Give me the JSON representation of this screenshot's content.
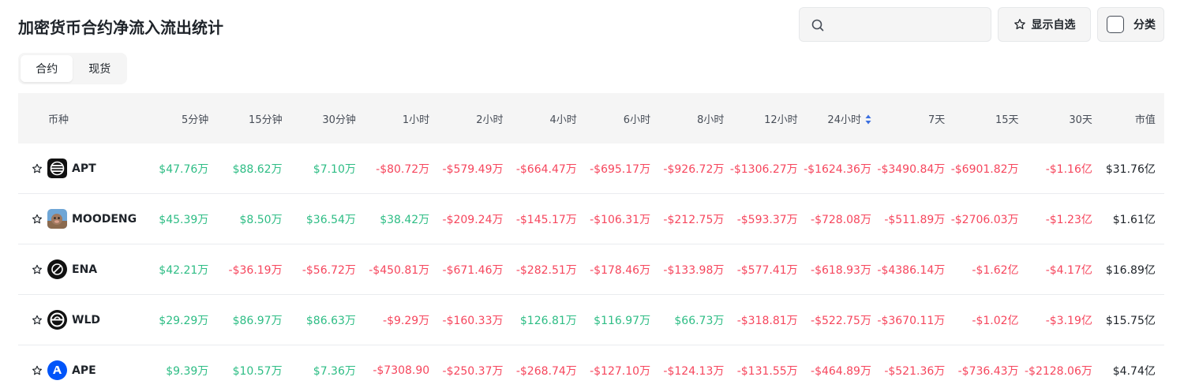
{
  "title": "加密货币合约净流入流出统计",
  "search": {
    "placeholder": "",
    "value": ""
  },
  "toolbar": {
    "favorites_label": "显示自选",
    "category_label": "分类"
  },
  "tabs": [
    {
      "label": "合约",
      "active": true
    },
    {
      "label": "现货",
      "active": false
    }
  ],
  "columns": [
    "币种",
    "5分钟",
    "15分钟",
    "30分钟",
    "1小时",
    "2小时",
    "4小时",
    "6小时",
    "8小时",
    "12小时",
    "24小时",
    "7天",
    "15天",
    "30天",
    "市值"
  ],
  "sorted_column": "24小时",
  "colors": {
    "positive": "#2ebd85",
    "negative": "#f6465d",
    "text": "#1e2329",
    "header_bg": "#f5f5f5"
  },
  "rows": [
    {
      "symbol": "APT",
      "icon": "apt-logo-icon",
      "values": [
        "$47.76万",
        "$88.62万",
        "$7.10万",
        "-$80.72万",
        "-$579.49万",
        "-$664.47万",
        "-$695.17万",
        "-$926.72万",
        "-$1306.27万",
        "-$1624.36万",
        "-$3490.84万",
        "-$6901.82万",
        "-$1.16亿"
      ],
      "market_cap": "$31.76亿"
    },
    {
      "symbol": "MOODENG",
      "icon": "moodeng-logo-icon",
      "values": [
        "$45.39万",
        "$8.50万",
        "$36.54万",
        "$38.42万",
        "-$209.24万",
        "-$145.17万",
        "-$106.31万",
        "-$212.75万",
        "-$593.37万",
        "-$728.08万",
        "-$511.89万",
        "-$2706.03万",
        "-$1.23亿"
      ],
      "market_cap": "$1.61亿"
    },
    {
      "symbol": "ENA",
      "icon": "ena-logo-icon",
      "values": [
        "$42.21万",
        "-$36.19万",
        "-$56.72万",
        "-$450.81万",
        "-$671.46万",
        "-$282.51万",
        "-$178.46万",
        "-$133.98万",
        "-$577.41万",
        "-$618.93万",
        "-$4386.14万",
        "-$1.62亿",
        "-$4.17亿"
      ],
      "market_cap": "$16.89亿"
    },
    {
      "symbol": "WLD",
      "icon": "wld-logo-icon",
      "values": [
        "$29.29万",
        "$86.97万",
        "$86.63万",
        "-$9.29万",
        "-$160.33万",
        "$126.81万",
        "$116.97万",
        "$66.73万",
        "-$318.81万",
        "-$522.75万",
        "-$3670.11万",
        "-$1.02亿",
        "-$3.19亿"
      ],
      "market_cap": "$15.75亿"
    },
    {
      "symbol": "APE",
      "icon": "ape-logo-icon",
      "values": [
        "$9.39万",
        "$10.57万",
        "$7.36万",
        "-$7308.90",
        "-$250.37万",
        "-$268.74万",
        "-$127.10万",
        "-$124.13万",
        "-$131.55万",
        "-$464.89万",
        "-$521.36万",
        "-$736.43万",
        "-$2128.06万"
      ],
      "market_cap": "$4.74亿"
    }
  ]
}
